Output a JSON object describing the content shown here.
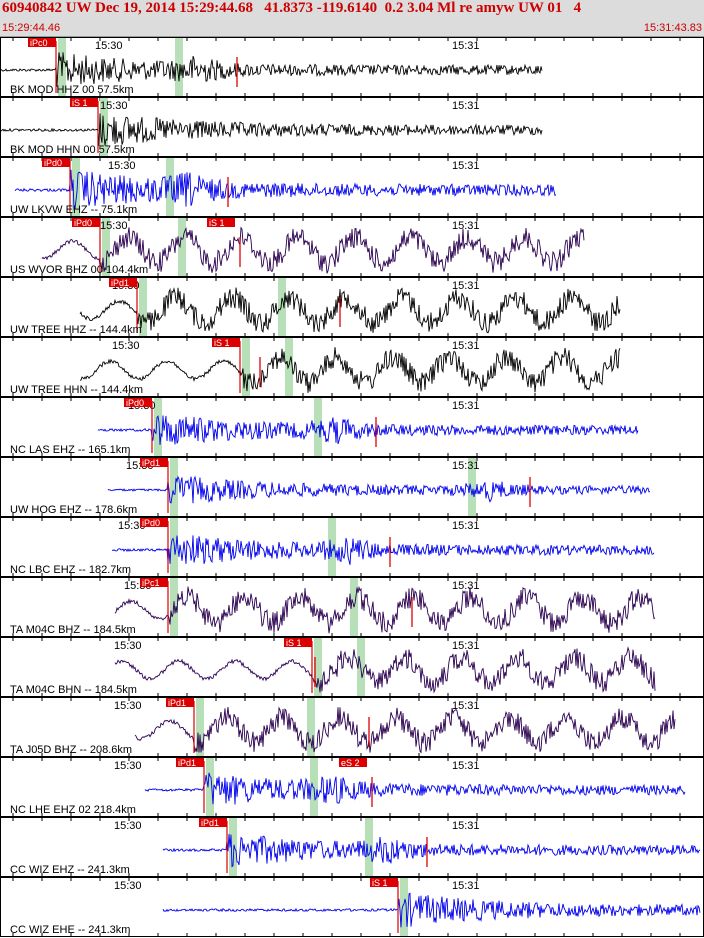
{
  "header": {
    "title": "60940842 UW Dec 19, 2014 15:29:44.68   41.8373 -119.6140  0.2 3.04 Ml re amyw UW 01   4",
    "start_time": "15:29:44.46",
    "end_time": "15:31:43.83"
  },
  "colors": {
    "header_bg": "#dcdcdc",
    "header_text": "#cc0000",
    "trace_black": "#000000",
    "trace_blue": "#0000ee",
    "trace_purple": "#2a0050",
    "pick_red": "#dd0000",
    "window_green": "#b8e0b8"
  },
  "time_ticks": [
    "15:30",
    "15:31"
  ],
  "panels": [
    {
      "label": "BK MOD HHZ 00 57.5km",
      "color": "black",
      "pick": "iPc0"
    },
    {
      "label": "BK MOD HHN 00 57.5km",
      "color": "black",
      "pick": "iS 1"
    },
    {
      "label": "UW LKVW EHZ -- 75.1km",
      "color": "blue",
      "pick": "iPd0"
    },
    {
      "label": "US WVOR BHZ 00 104.4km",
      "color": "purple",
      "pick": "iPd0"
    },
    {
      "label": "UW TREE HHZ -- 144.4km",
      "color": "black",
      "pick": "iPd1"
    },
    {
      "label": "UW TREE HHN -- 144.4km",
      "color": "black",
      "pick": "iS 1"
    },
    {
      "label": "NC LAS EHZ -- 165.1km",
      "color": "blue",
      "pick": "iPd0"
    },
    {
      "label": "UW HOG EHZ -- 178.6km",
      "color": "blue",
      "pick": "iPd1"
    },
    {
      "label": "NC LBC EHZ -- 182.7km",
      "color": "blue",
      "pick": "iPd0"
    },
    {
      "label": "TA M04C BHZ -- 184.5km",
      "color": "purple",
      "pick": "iPc1"
    },
    {
      "label": "TA M04C BHN -- 184.5km",
      "color": "purple",
      "pick": "iS 1"
    },
    {
      "label": "TA J05D BHZ -- 208.6km",
      "color": "purple",
      "pick": "iPd1"
    },
    {
      "label": "NC LHE EHZ 02 218.4km",
      "color": "blue",
      "pick": "iPd1"
    },
    {
      "label": "CC WIZ EHZ -- 241.3km",
      "color": "blue",
      "pick": "iPd1"
    },
    {
      "label": "CC WIZ EHE -- 241.3km",
      "color": "blue",
      "pick": "iS 1"
    }
  ],
  "extra_picks": {
    "3": "iS 1",
    "12": "eS 2"
  }
}
